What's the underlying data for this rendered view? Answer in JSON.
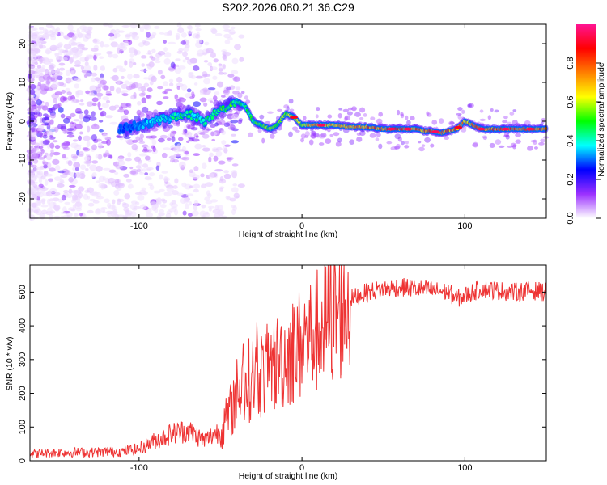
{
  "figure_title": "S202.2026.080.21.36.C29",
  "chart_data": [
    {
      "type": "heatmap",
      "title": "S202.2026.080.21.36.C29",
      "xlabel": "Height of straight line (km)",
      "ylabel": "Frequency (Hz)",
      "xlim": [
        -167,
        150
      ],
      "ylim": [
        -25,
        25
      ],
      "xticks": [
        -100,
        0,
        100
      ],
      "yticks": [
        -20,
        -10,
        0,
        10,
        20
      ],
      "colorbar": {
        "label": "Normalized spectral amplitude",
        "range": [
          0.0,
          1.0
        ],
        "ticks": [
          "0.0",
          "0.2",
          "0.4",
          "0.6",
          "0.8"
        ],
        "colors": [
          "#ffffff",
          "#9b30ff",
          "#0000ff",
          "#00ffff",
          "#00ff00",
          "#ffff00",
          "#ff7f00",
          "#ff0000",
          "#ff1493"
        ]
      },
      "ridge": {
        "x": [
          -110,
          -100,
          -90,
          -80,
          -70,
          -60,
          -50,
          -45,
          -40,
          -35,
          -30,
          -25,
          -20,
          -15,
          -10,
          -5,
          0,
          5,
          10,
          20,
          30,
          40,
          50,
          60,
          70,
          75,
          80,
          85,
          90,
          95,
          100,
          110,
          120,
          130,
          140,
          150
        ],
        "y": [
          -2,
          -1,
          0,
          1,
          2,
          0,
          3,
          4,
          5,
          4,
          0,
          -1,
          -2,
          -1,
          2,
          1,
          -1,
          -1,
          -1,
          -1,
          -1.5,
          -1.5,
          -2,
          -2,
          -2,
          -2.5,
          -2.5,
          -3,
          -2.5,
          -2,
          0,
          -2,
          -2,
          -2,
          -2,
          -2
        ],
        "amplitude": [
          0.3,
          0.35,
          0.4,
          0.45,
          0.5,
          0.5,
          0.55,
          0.55,
          0.5,
          0.5,
          0.55,
          0.55,
          0.6,
          0.6,
          0.65,
          0.65,
          0.7,
          0.8,
          0.9,
          0.75,
          0.8,
          0.85,
          0.9,
          0.9,
          0.85,
          0.85,
          0.9,
          0.9,
          0.85,
          0.85,
          0.8,
          0.9,
          0.9,
          0.9,
          0.9,
          0.9
        ]
      }
    },
    {
      "type": "line",
      "xlabel": "Height of straight line (km)",
      "ylabel": "SNR (10 * v/v)",
      "xlim": [
        -167,
        150
      ],
      "ylim": [
        0,
        580
      ],
      "xticks": [
        -100,
        0,
        100
      ],
      "yticks": [
        0,
        100,
        200,
        300,
        400,
        500
      ],
      "color": "#ee3333",
      "series": [
        {
          "name": "SNR",
          "x": [
            -167,
            -150,
            -130,
            -110,
            -100,
            -90,
            -80,
            -70,
            -60,
            -50,
            -45,
            -40,
            -35,
            -30,
            -25,
            -20,
            -15,
            -10,
            -5,
            0,
            5,
            10,
            15,
            20,
            25,
            30,
            40,
            50,
            60,
            70,
            80,
            90,
            95,
            100,
            110,
            120,
            130,
            140,
            150
          ],
          "values": [
            20,
            25,
            25,
            28,
            35,
            60,
            80,
            90,
            60,
            90,
            130,
            200,
            230,
            250,
            260,
            270,
            290,
            310,
            330,
            350,
            370,
            390,
            410,
            430,
            450,
            480,
            500,
            510,
            515,
            510,
            505,
            500,
            480,
            490,
            510,
            505,
            500,
            505,
            500
          ]
        }
      ]
    }
  ]
}
